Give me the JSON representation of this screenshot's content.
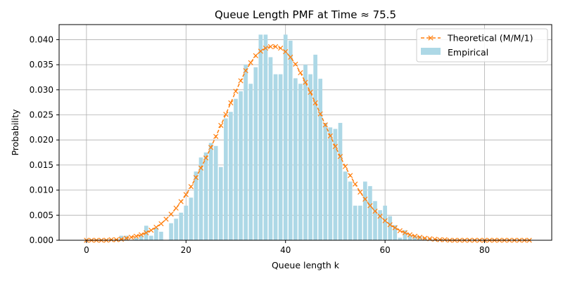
{
  "chart_data": {
    "type": "bar",
    "title": "Queue Length PMF at Time ≈ 75.5",
    "xlabel": "Queue length k",
    "ylabel": "Probability",
    "xlim": [
      -5.5,
      93.5
    ],
    "ylim": [
      0,
      0.043
    ],
    "xticks": [
      0,
      20,
      40,
      60,
      80
    ],
    "yticks": [
      0.0,
      0.005,
      0.01,
      0.015,
      0.02,
      0.025,
      0.03,
      0.035,
      0.04
    ],
    "xtick_labels": [
      "0",
      "20",
      "40",
      "60",
      "80"
    ],
    "ytick_labels": [
      "0.000",
      "0.005",
      "0.010",
      "0.015",
      "0.020",
      "0.025",
      "0.030",
      "0.035",
      "0.040"
    ],
    "grid": true,
    "legend_position": "top-right",
    "series": [
      {
        "name": "Empirical",
        "kind": "bar",
        "color": "#add8e6",
        "x": [
          0,
          1,
          2,
          3,
          4,
          5,
          6,
          7,
          8,
          9,
          10,
          11,
          12,
          13,
          14,
          15,
          16,
          17,
          18,
          19,
          20,
          21,
          22,
          23,
          24,
          25,
          26,
          27,
          28,
          29,
          30,
          31,
          32,
          33,
          34,
          35,
          36,
          37,
          38,
          39,
          40,
          41,
          42,
          43,
          44,
          45,
          46,
          47,
          48,
          49,
          50,
          51,
          52,
          53,
          54,
          55,
          56,
          57,
          58,
          59,
          60,
          61,
          62,
          63,
          64,
          65,
          66,
          67,
          68,
          69,
          70,
          71,
          72,
          73,
          74,
          75,
          76,
          77,
          78,
          79,
          80,
          81,
          82,
          83,
          84,
          85,
          86,
          87,
          88,
          89
        ],
        "values": [
          0,
          0,
          0,
          0,
          0,
          0,
          0,
          0.0009,
          0.0009,
          0,
          0.0005,
          0.001,
          0.0029,
          0.0009,
          0.0025,
          0.0017,
          0,
          0.0034,
          0.0043,
          0.0055,
          0.0069,
          0.0085,
          0.0137,
          0.0165,
          0.0175,
          0.0194,
          0.0188,
          0.0146,
          0.0243,
          0.0256,
          0.0282,
          0.0297,
          0.035,
          0.0312,
          0.0345,
          0.041,
          0.041,
          0.0365,
          0.0331,
          0.0331,
          0.041,
          0.0398,
          0.0323,
          0.0312,
          0.035,
          0.0331,
          0.037,
          0.0322,
          0.0234,
          0.0225,
          0.0222,
          0.0234,
          0.0137,
          0.0117,
          0.0069,
          0.0069,
          0.0117,
          0.0108,
          0.0078,
          0.006,
          0.0069,
          0.0048,
          0.003,
          0.0005,
          0.002,
          0.001,
          0.0009,
          0.0008,
          0.0005,
          0,
          0,
          0,
          0,
          0,
          0,
          0,
          0,
          0,
          0,
          0,
          0,
          0,
          0,
          0,
          0,
          0,
          0,
          0,
          0,
          0
        ]
      },
      {
        "name": "Theoretical (M/M/1)",
        "kind": "line",
        "color": "#ff7f0e",
        "marker": "x",
        "linestyle": "dashed",
        "x": [
          0,
          1,
          2,
          3,
          4,
          5,
          6,
          7,
          8,
          9,
          10,
          11,
          12,
          13,
          14,
          15,
          16,
          17,
          18,
          19,
          20,
          21,
          22,
          23,
          24,
          25,
          26,
          27,
          28,
          29,
          30,
          31,
          32,
          33,
          34,
          35,
          36,
          37,
          38,
          39,
          40,
          41,
          42,
          43,
          44,
          45,
          46,
          47,
          48,
          49,
          50,
          51,
          52,
          53,
          54,
          55,
          56,
          57,
          58,
          59,
          60,
          61,
          62,
          63,
          64,
          65,
          66,
          67,
          68,
          69,
          70,
          71,
          72,
          73,
          74,
          75,
          76,
          77,
          78,
          79,
          80,
          81,
          82,
          83,
          84,
          85,
          86,
          87,
          88,
          89
        ],
        "values": [
          0,
          0,
          0,
          0,
          0,
          0.0001,
          0.0001,
          0.0002,
          0.0004,
          0.0006,
          0.0008,
          0.0011,
          0.0015,
          0.002,
          0.0026,
          0.0033,
          0.0042,
          0.0052,
          0.0064,
          0.0077,
          0.0091,
          0.0107,
          0.0125,
          0.0144,
          0.0164,
          0.0185,
          0.0207,
          0.0229,
          0.0251,
          0.0274,
          0.0297,
          0.0318,
          0.0338,
          0.0354,
          0.0368,
          0.0377,
          0.0383,
          0.0386,
          0.0386,
          0.0383,
          0.0376,
          0.0365,
          0.0351,
          0.0334,
          0.0315,
          0.0295,
          0.0274,
          0.0252,
          0.023,
          0.0208,
          0.0187,
          0.0167,
          0.0147,
          0.0129,
          0.0112,
          0.0096,
          0.0082,
          0.0069,
          0.0058,
          0.0048,
          0.0039,
          0.0031,
          0.0025,
          0.0019,
          0.0015,
          0.0011,
          0.0008,
          0.0006,
          0.0004,
          0.0003,
          0.0002,
          0.0001,
          0.0001,
          0,
          0,
          0,
          0,
          0,
          0,
          0,
          0,
          0,
          0,
          0,
          0,
          0,
          0,
          0,
          0,
          0
        ]
      }
    ]
  }
}
